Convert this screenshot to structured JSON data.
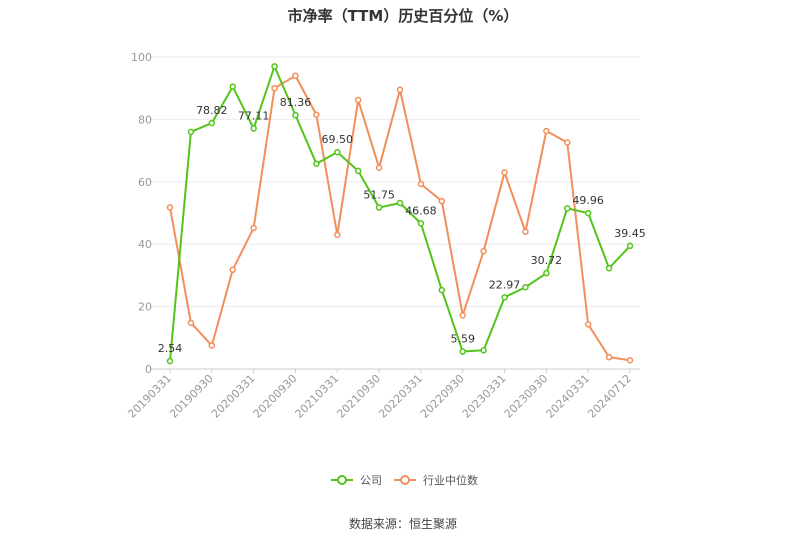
{
  "chart_data": {
    "type": "line",
    "title": "市净率（TTM）历史百分位（%）",
    "ylim": [
      0,
      100
    ],
    "yticks": [
      0,
      20,
      40,
      60,
      80,
      100
    ],
    "grid": "horizontal",
    "legend_position": "bottom",
    "x": [
      "20190331",
      "20190630",
      "20190930",
      "20191231",
      "20200331",
      "20200630",
      "20200930",
      "20201231",
      "20210331",
      "20210630",
      "20210930",
      "20211231",
      "20220331",
      "20220630",
      "20220930",
      "20221231",
      "20230331",
      "20230630",
      "20230930",
      "20231231",
      "20240331",
      "20240630",
      "20240712"
    ],
    "xtick_labels": [
      "20190331",
      "20190930",
      "20200331",
      "20200930",
      "20210331",
      "20210930",
      "20220331",
      "20220930",
      "20230331",
      "20230930",
      "20240331",
      "20240712"
    ],
    "series": [
      {
        "name": "公司",
        "color": "#52c41a",
        "values": [
          2.54,
          76.0,
          78.82,
          90.5,
          77.11,
          97.0,
          81.36,
          65.8,
          69.5,
          63.5,
          51.75,
          53.2,
          46.68,
          25.3,
          5.59,
          6.0,
          22.97,
          26.2,
          30.72,
          51.5,
          49.96,
          32.3,
          39.45
        ],
        "labels": {
          "0": "2.54",
          "2": "78.82",
          "4": "77.11",
          "6": "81.36",
          "8": "69.50",
          "10": "51.75",
          "12": "46.68",
          "14": "5.59",
          "16": "22.97",
          "18": "30.72",
          "20": "49.96",
          "22": "39.45"
        }
      },
      {
        "name": "行业中位数",
        "color": "#f28e5b",
        "values": [
          51.8,
          14.8,
          7.5,
          31.8,
          45.2,
          90.0,
          94.0,
          81.5,
          43.0,
          86.2,
          64.5,
          89.5,
          59.3,
          53.8,
          17.2,
          37.8,
          63.0,
          44.0,
          76.3,
          72.6,
          14.3,
          3.8,
          2.8
        ]
      }
    ]
  },
  "source": "数据来源：恒生聚源"
}
